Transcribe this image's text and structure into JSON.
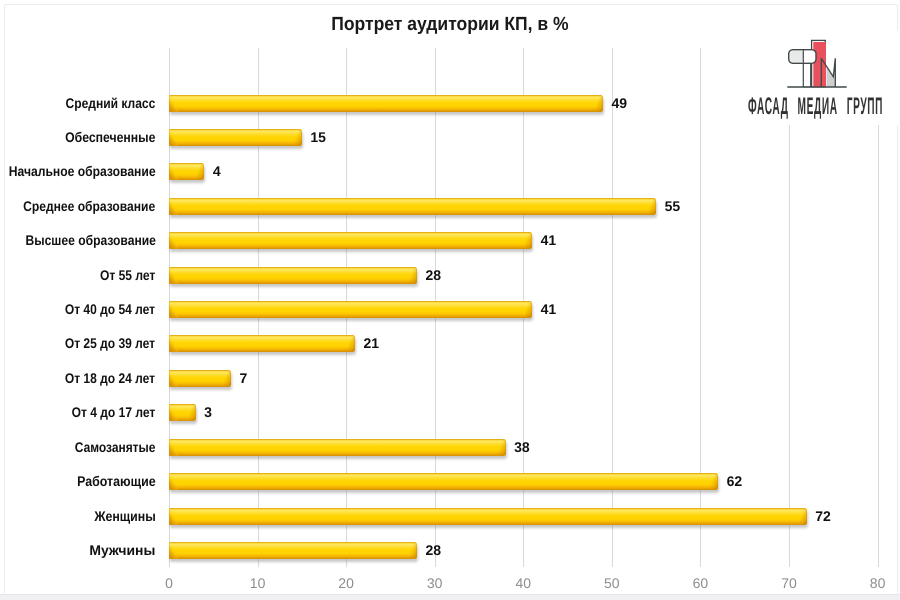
{
  "title": "Портрет аудитории КП, в %",
  "logo": {
    "name": "Фасад Медиа Групп logo",
    "text": "ФАСАД МЕДИА ГРУПП",
    "accent_color": "#e84f5c"
  },
  "chart_data": {
    "type": "bar",
    "orientation": "horizontal",
    "title": "Портрет аудитории КП, в %",
    "categories": [
      "Средний класс",
      "Обеспеченные",
      "Начальное образование",
      "Среднее образование",
      "Высшее образование",
      "От 55 лет",
      "От 40 до 54 лет",
      "От 25 до 39 лет",
      "От 18 до 24 лет",
      "От 4 до 17 лет",
      "Самозанятые",
      "Работающие",
      "Женщины",
      "Мужчины"
    ],
    "values": [
      49,
      15,
      4,
      55,
      41,
      28,
      41,
      21,
      7,
      3,
      38,
      62,
      72,
      28
    ],
    "xlabel": "",
    "ylabel": "",
    "xlim": [
      0,
      80
    ],
    "xticks": [
      0,
      10,
      20,
      30,
      40,
      50,
      60,
      70,
      80
    ],
    "bar_color": "#ffd400",
    "grid": true,
    "legend": false,
    "data_labels": true
  }
}
